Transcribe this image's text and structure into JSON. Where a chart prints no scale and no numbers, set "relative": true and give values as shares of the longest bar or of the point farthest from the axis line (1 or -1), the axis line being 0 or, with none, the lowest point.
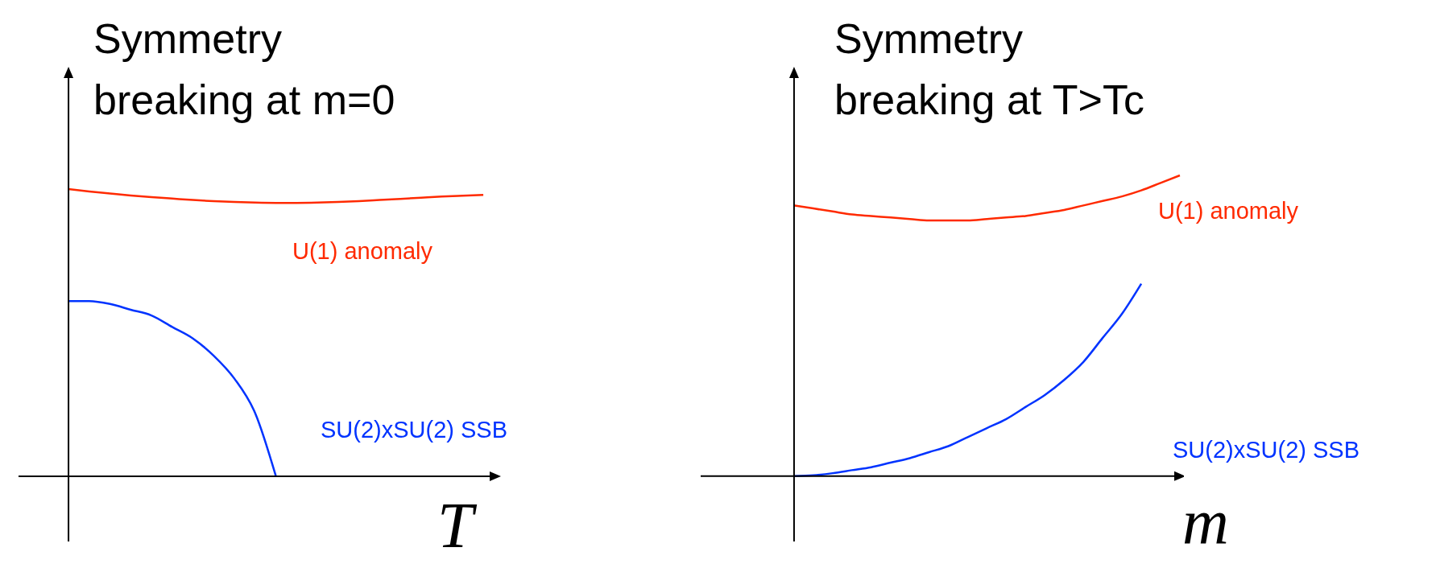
{
  "chart_data": [
    {
      "type": "line",
      "title": "Symmetry\nbreaking at m=0",
      "xlabel": "T",
      "relative": true,
      "legend": false,
      "marker": "none",
      "line_style": "solid",
      "categories": [
        null,
        null,
        null,
        null,
        null,
        null,
        null,
        null,
        null,
        null,
        null,
        null,
        null,
        null,
        null,
        null,
        null,
        null,
        null,
        null,
        null
      ],
      "series": [
        {
          "name": "U(1) anomaly",
          "color": "#ff2a00",
          "values": [
            1.0,
            0.992,
            0.985,
            0.978,
            0.972,
            0.967,
            0.962,
            0.958,
            0.955,
            0.953,
            0.952,
            0.952,
            0.953,
            0.955,
            0.958,
            0.962,
            0.966,
            0.97,
            0.974,
            0.977,
            0.98
          ]
        },
        {
          "name": "SU(2)xSU(2) SSB",
          "color": "#0033ff",
          "values": [
            0.61,
            0.61,
            0.6,
            0.58,
            0.56,
            0.52,
            0.48,
            0.42,
            0.34,
            0.22,
            0,
            null,
            null,
            null,
            null,
            null,
            null,
            null,
            null,
            null,
            null
          ]
        }
      ]
    },
    {
      "type": "line",
      "title": "Symmetry\nbreaking at T>Tc",
      "xlabel": "m",
      "relative": true,
      "legend": false,
      "marker": "none",
      "line_style": "solid",
      "categories": [
        null,
        null,
        null,
        null,
        null,
        null,
        null,
        null,
        null,
        null,
        null,
        null,
        null,
        null,
        null,
        null,
        null,
        null,
        null,
        null,
        null
      ],
      "series": [
        {
          "name": "U(1) anomaly",
          "color": "#ff2a00",
          "values": [
            0.9,
            0.89,
            0.88,
            0.87,
            0.865,
            0.86,
            0.855,
            0.85,
            0.85,
            0.85,
            0.855,
            0.86,
            0.865,
            0.875,
            0.885,
            0.9,
            0.915,
            0.93,
            0.95,
            0.975,
            1.0
          ]
        },
        {
          "name": "SU(2)xSU(2) SSB",
          "color": "#0033ff",
          "values": [
            0,
            0.003,
            0.01,
            0.02,
            0.03,
            0.045,
            0.06,
            0.08,
            0.1,
            0.13,
            0.16,
            0.19,
            0.23,
            0.27,
            0.32,
            0.38,
            0.46,
            0.54,
            0.64,
            null,
            null
          ]
        }
      ]
    }
  ]
}
